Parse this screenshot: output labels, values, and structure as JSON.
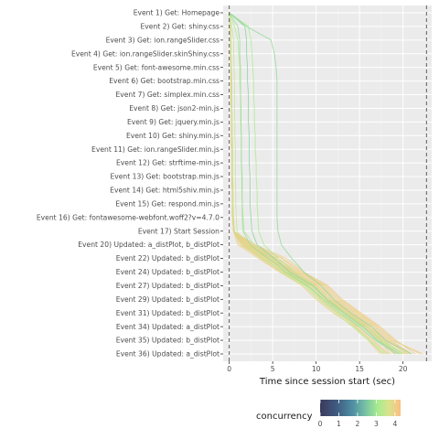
{
  "chart_data": {
    "type": "line",
    "title": "",
    "xlabel": "Time since session start (sec)",
    "ylabel": "",
    "xlim": [
      -0.7,
      23.3
    ],
    "xticks": [
      0,
      5,
      10,
      15,
      20
    ],
    "grid": true,
    "reference_lines_x": [
      0,
      22.7
    ],
    "categories": [
      "Event 1) Get: Homepage",
      "Event 2) Get: shiny.css",
      "Event 3) Get: ion.rangeSlider.css",
      "Event 4) Get: ion.rangeSlider.skinShiny.css",
      "Event 5) Get: font-awesome.min.css",
      "Event 6) Get: bootstrap.min.css",
      "Event 7) Get: simplex.min.css",
      "Event 8) Get: json2-min.js",
      "Event 9) Get: jquery.min.js",
      "Event 10) Get: shiny.min.js",
      "Event 11) Get: ion.rangeSlider.min.js",
      "Event 12) Get: strftime-min.js",
      "Event 13) Get: bootstrap.min.js",
      "Event 14) Get: html5shiv.min.js",
      "Event 15) Get: respond.min.js",
      "Event 16) Get: fontawesome-webfont.woff2?v=4.7.0",
      "Event 17) Start Session",
      "Event 20) Updated: a_distPlot, b_distPlot",
      "Event 22) Updated: b_distPlot",
      "Event 24) Updated: b_distPlot",
      "Event 27) Updated: b_distPlot",
      "Event 29) Updated: b_distPlot",
      "Event 31) Updated: b_distPlot",
      "Event 34) Updated: a_distPlot",
      "Event 35) Updated: b_distPlot",
      "Event 36) Updated: a_distPlot"
    ],
    "color_scale": {
      "title": "concurrency",
      "breaks": [
        0,
        1,
        2,
        3,
        4
      ],
      "min": 0,
      "max": 4.3,
      "stops": [
        "#3b3a5c",
        "#3f5a7f",
        "#4f8ea3",
        "#7cc6a4",
        "#a8ec8e",
        "#d8e38e",
        "#fbbf80"
      ]
    },
    "series": [
      {
        "concurrency": 3.2,
        "values": [
          0,
          0.15,
          0.2,
          0.2,
          0.25,
          0.3,
          0.3,
          0.3,
          0.35,
          0.35,
          0.4,
          0.4,
          0.4,
          0.45,
          0.45,
          0.5,
          0.6,
          1.5,
          3.8,
          6.2,
          8.8,
          10.5,
          12.5,
          14.5,
          16.2,
          18.0
        ]
      },
      {
        "concurrency": 2.6,
        "values": [
          0,
          1.0,
          1.2,
          1.2,
          1.3,
          1.3,
          1.3,
          1.35,
          1.35,
          1.4,
          1.4,
          1.4,
          1.45,
          1.45,
          1.5,
          1.5,
          1.6,
          2.4,
          4.5,
          6.5,
          9.0,
          10.8,
          12.8,
          15.0,
          16.8,
          19.2
        ]
      },
      {
        "concurrency": 2.4,
        "values": [
          0,
          1.8,
          2.0,
          2.0,
          2.1,
          2.1,
          2.2,
          2.2,
          2.2,
          2.3,
          2.3,
          2.3,
          2.4,
          2.4,
          2.4,
          2.5,
          2.6,
          3.2,
          5.2,
          7.0,
          9.6,
          11.2,
          13.2,
          15.4,
          17.0,
          19.6
        ]
      },
      {
        "concurrency": 2.9,
        "values": [
          0,
          2.2,
          2.5,
          2.6,
          2.7,
          2.8,
          2.8,
          2.9,
          2.9,
          3.0,
          3.0,
          3.1,
          3.1,
          3.2,
          3.2,
          3.3,
          3.4,
          4.0,
          5.6,
          7.5,
          9.8,
          11.4,
          13.5,
          15.8,
          17.5,
          20.2
        ]
      },
      {
        "concurrency": 2.5,
        "values": [
          0,
          2.0,
          4.8,
          5.2,
          5.4,
          5.5,
          5.5,
          5.5,
          5.5,
          5.5,
          5.5,
          5.5,
          5.5,
          5.5,
          5.5,
          5.5,
          5.6,
          6.0,
          7.2,
          8.6,
          10.6,
          12.0,
          14.0,
          16.4,
          18.0,
          21.0
        ]
      },
      {
        "concurrency": 3.0,
        "values": [
          0,
          0.6,
          1.0,
          1.1,
          1.2,
          1.2,
          1.3,
          1.3,
          1.3,
          1.4,
          1.4,
          1.4,
          1.5,
          1.5,
          1.5,
          1.6,
          1.7,
          2.8,
          4.9,
          6.8,
          9.2,
          10.9,
          13.0,
          15.2,
          17.2,
          19.9
        ]
      },
      {
        "concurrency": 3.3,
        "values": [
          0,
          0.3,
          0.5,
          0.5,
          0.55,
          0.6,
          0.6,
          0.6,
          0.65,
          0.65,
          0.7,
          0.7,
          0.7,
          0.75,
          0.75,
          0.8,
          0.9,
          2.0,
          4.2,
          6.0,
          8.6,
          10.2,
          12.2,
          14.2,
          16.0,
          17.8
        ]
      },
      {
        "concurrency": 4.0,
        "values": [
          0,
          0.1,
          0.15,
          0.15,
          0.2,
          0.2,
          0.2,
          0.25,
          0.25,
          0.25,
          0.3,
          0.3,
          0.3,
          0.35,
          0.35,
          0.4,
          0.5,
          1.8,
          4.5,
          7.0,
          9.8,
          11.2,
          13.4,
          15.6,
          17.4,
          19.0
        ]
      },
      {
        "concurrency": 4.0,
        "values": [
          0,
          0.1,
          0.15,
          0.15,
          0.2,
          0.2,
          0.2,
          0.25,
          0.25,
          0.25,
          0.3,
          0.3,
          0.3,
          0.35,
          0.35,
          0.4,
          0.5,
          2.2,
          5.0,
          7.6,
          10.2,
          11.8,
          14.0,
          16.2,
          18.0,
          20.6
        ]
      },
      {
        "concurrency": 4.0,
        "values": [
          0,
          0.1,
          0.15,
          0.15,
          0.2,
          0.2,
          0.2,
          0.25,
          0.25,
          0.25,
          0.3,
          0.3,
          0.3,
          0.35,
          0.35,
          0.4,
          0.5,
          1.2,
          3.8,
          6.4,
          9.2,
          10.6,
          12.6,
          14.8,
          16.4,
          18.2
        ]
      },
      {
        "concurrency": 4.0,
        "values": [
          0,
          0.1,
          0.15,
          0.15,
          0.2,
          0.2,
          0.2,
          0.25,
          0.25,
          0.25,
          0.3,
          0.3,
          0.3,
          0.35,
          0.35,
          0.4,
          0.5,
          2.6,
          6.0,
          8.2,
          11.0,
          12.6,
          14.8,
          17.0,
          18.8,
          22.3
        ]
      },
      {
        "concurrency": 4.0,
        "values": [
          0,
          0.1,
          0.15,
          0.15,
          0.2,
          0.2,
          0.2,
          0.25,
          0.25,
          0.25,
          0.3,
          0.3,
          0.3,
          0.35,
          0.35,
          0.4,
          0.5,
          1.6,
          4.2,
          6.6,
          9.4,
          11.0,
          13.2,
          15.4,
          17.2,
          18.6
        ]
      },
      {
        "concurrency": 4.0,
        "values": [
          0,
          0.1,
          0.15,
          0.15,
          0.2,
          0.2,
          0.2,
          0.25,
          0.25,
          0.25,
          0.3,
          0.3,
          0.3,
          0.35,
          0.35,
          0.4,
          0.5,
          2.0,
          4.8,
          7.2,
          10.0,
          11.6,
          13.8,
          16.0,
          17.8,
          19.8
        ]
      },
      {
        "concurrency": 4.0,
        "values": [
          0,
          0.1,
          0.15,
          0.15,
          0.2,
          0.2,
          0.2,
          0.25,
          0.25,
          0.25,
          0.3,
          0.3,
          0.3,
          0.35,
          0.35,
          0.4,
          0.5,
          3.0,
          6.6,
          8.6,
          11.4,
          13.0,
          15.2,
          17.4,
          19.2,
          21.4
        ]
      },
      {
        "concurrency": 4.0,
        "values": [
          0,
          0.1,
          0.15,
          0.15,
          0.2,
          0.2,
          0.2,
          0.25,
          0.25,
          0.25,
          0.3,
          0.3,
          0.3,
          0.35,
          0.35,
          0.4,
          0.5,
          1.4,
          3.6,
          6.0,
          8.8,
          10.4,
          12.4,
          14.6,
          16.2,
          17.6
        ]
      },
      {
        "concurrency": 4.0,
        "values": [
          0,
          0.1,
          0.15,
          0.15,
          0.2,
          0.2,
          0.2,
          0.25,
          0.25,
          0.25,
          0.3,
          0.3,
          0.3,
          0.35,
          0.35,
          0.4,
          0.5,
          2.4,
          5.4,
          7.8,
          10.6,
          12.2,
          14.4,
          16.6,
          18.4,
          20.8
        ]
      },
      {
        "concurrency": 4.0,
        "values": [
          0,
          0.1,
          0.15,
          0.15,
          0.2,
          0.2,
          0.2,
          0.25,
          0.25,
          0.25,
          0.3,
          0.3,
          0.3,
          0.35,
          0.35,
          0.4,
          0.5,
          1.0,
          3.4,
          5.8,
          8.4,
          10.0,
          12.0,
          14.4,
          16.0,
          17.4
        ]
      },
      {
        "concurrency": 4.0,
        "values": [
          0,
          0.1,
          0.15,
          0.15,
          0.2,
          0.2,
          0.2,
          0.25,
          0.25,
          0.25,
          0.3,
          0.3,
          0.3,
          0.35,
          0.35,
          0.4,
          0.5,
          2.8,
          6.2,
          8.4,
          11.2,
          12.8,
          15.0,
          17.2,
          19.0,
          22.0
        ]
      },
      {
        "concurrency": 4.0,
        "values": [
          0,
          0.1,
          0.15,
          0.15,
          0.2,
          0.2,
          0.2,
          0.25,
          0.25,
          0.25,
          0.3,
          0.3,
          0.3,
          0.35,
          0.35,
          0.4,
          0.5,
          1.9,
          4.6,
          7.0,
          9.6,
          11.4,
          13.6,
          15.8,
          17.6,
          19.4
        ]
      },
      {
        "concurrency": 4.0,
        "values": [
          0,
          0.1,
          0.15,
          0.15,
          0.2,
          0.2,
          0.2,
          0.25,
          0.25,
          0.25,
          0.3,
          0.3,
          0.3,
          0.35,
          0.35,
          0.4,
          0.5,
          2.2,
          5.2,
          7.4,
          10.4,
          12.0,
          14.2,
          16.4,
          18.2,
          20.4
        ]
      },
      {
        "concurrency": 4.0,
        "values": [
          0,
          0.1,
          0.15,
          0.15,
          0.2,
          0.2,
          0.2,
          0.25,
          0.25,
          0.25,
          0.3,
          0.3,
          0.3,
          0.35,
          0.35,
          0.4,
          0.5,
          1.5,
          4.0,
          6.3,
          9.0,
          10.8,
          12.8,
          15.0,
          16.6,
          18.4
        ]
      },
      {
        "concurrency": 4.0,
        "values": [
          0,
          0.1,
          0.15,
          0.15,
          0.2,
          0.2,
          0.2,
          0.25,
          0.25,
          0.25,
          0.3,
          0.3,
          0.3,
          0.35,
          0.35,
          0.4,
          0.5,
          2.5,
          5.6,
          8.0,
          10.8,
          12.4,
          14.6,
          16.8,
          18.6,
          21.0
        ]
      },
      {
        "concurrency": 4.0,
        "values": [
          0,
          0.1,
          0.15,
          0.15,
          0.2,
          0.2,
          0.2,
          0.25,
          0.25,
          0.25,
          0.3,
          0.3,
          0.3,
          0.35,
          0.35,
          0.4,
          0.5,
          1.7,
          4.4,
          6.8,
          9.6,
          11.2,
          13.4,
          15.6,
          17.4,
          19.2
        ]
      },
      {
        "concurrency": 4.0,
        "values": [
          0,
          0.1,
          0.15,
          0.15,
          0.2,
          0.2,
          0.2,
          0.25,
          0.25,
          0.25,
          0.3,
          0.3,
          0.3,
          0.35,
          0.35,
          0.4,
          0.5,
          2.1,
          5.0,
          7.3,
          10.0,
          11.6,
          13.8,
          16.0,
          17.8,
          20.0
        ]
      }
    ]
  }
}
